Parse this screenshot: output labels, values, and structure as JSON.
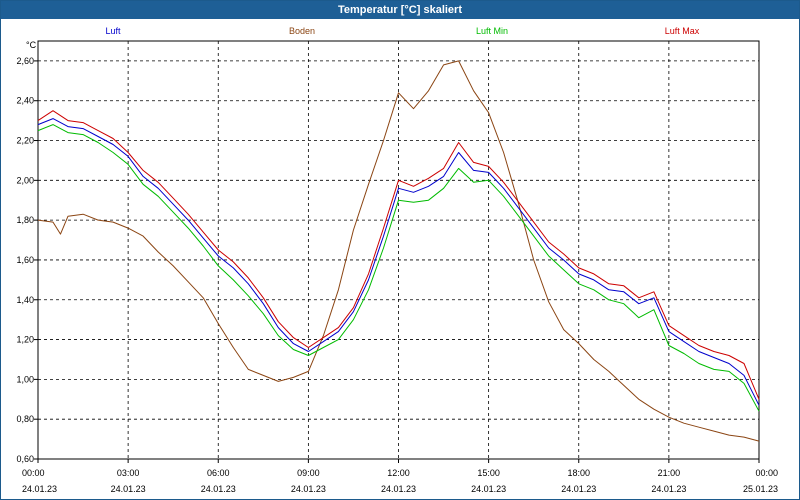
{
  "window": {
    "title": "Temperatur [°C] skaliert"
  },
  "chart_data": {
    "type": "line",
    "title": "Temperatur [°C] skaliert",
    "ylabel": "°C",
    "xlabel": "",
    "ylim": [
      0.6,
      2.7
    ],
    "xlim": [
      0,
      24
    ],
    "grid": true,
    "legend_position": "top",
    "yticks": [
      "2,60",
      "2,40",
      "2,20",
      "2,00",
      "1,80",
      "1,60",
      "1,40",
      "1,20",
      "1,00",
      "0,80",
      "0,60"
    ],
    "xticks": [
      {
        "time": "00:00",
        "date": "24.01.23"
      },
      {
        "time": "03:00",
        "date": "24.01.23"
      },
      {
        "time": "06:00",
        "date": "24.01.23"
      },
      {
        "time": "09:00",
        "date": "24.01.23"
      },
      {
        "time": "12:00",
        "date": "24.01.23"
      },
      {
        "time": "15:00",
        "date": "24.01.23"
      },
      {
        "time": "18:00",
        "date": "24.01.23"
      },
      {
        "time": "21:00",
        "date": "24.01.23"
      },
      {
        "time": "00:00",
        "date": "25.01.23"
      }
    ],
    "series": [
      {
        "name": "Luft",
        "color": "#0000cc",
        "points": [
          [
            0,
            2.28
          ],
          [
            0.5,
            2.31
          ],
          [
            1,
            2.27
          ],
          [
            1.5,
            2.26
          ],
          [
            2,
            2.22
          ],
          [
            2.5,
            2.18
          ],
          [
            3,
            2.12
          ],
          [
            3.5,
            2.02
          ],
          [
            4,
            1.96
          ],
          [
            4.5,
            1.88
          ],
          [
            5,
            1.8
          ],
          [
            5.5,
            1.71
          ],
          [
            6,
            1.62
          ],
          [
            6.5,
            1.56
          ],
          [
            7,
            1.48
          ],
          [
            7.5,
            1.38
          ],
          [
            8,
            1.26
          ],
          [
            8.5,
            1.18
          ],
          [
            9,
            1.14
          ],
          [
            9.5,
            1.19
          ],
          [
            10,
            1.24
          ],
          [
            10.5,
            1.34
          ],
          [
            11,
            1.5
          ],
          [
            11.5,
            1.72
          ],
          [
            12,
            1.96
          ],
          [
            12.5,
            1.94
          ],
          [
            13,
            1.97
          ],
          [
            13.5,
            2.02
          ],
          [
            14,
            2.14
          ],
          [
            14.5,
            2.05
          ],
          [
            15,
            2.04
          ],
          [
            15.5,
            1.96
          ],
          [
            16,
            1.86
          ],
          [
            16.5,
            1.76
          ],
          [
            17,
            1.66
          ],
          [
            17.5,
            1.6
          ],
          [
            18,
            1.53
          ],
          [
            18.5,
            1.5
          ],
          [
            19,
            1.45
          ],
          [
            19.5,
            1.44
          ],
          [
            20,
            1.38
          ],
          [
            20.5,
            1.41
          ],
          [
            21,
            1.24
          ],
          [
            21.5,
            1.19
          ],
          [
            22,
            1.14
          ],
          [
            22.5,
            1.11
          ],
          [
            23,
            1.08
          ],
          [
            23.5,
            1.02
          ],
          [
            24,
            0.87
          ]
        ]
      },
      {
        "name": "Boden",
        "color": "#8b4513",
        "points": [
          [
            0,
            1.8
          ],
          [
            0.5,
            1.79
          ],
          [
            0.75,
            1.73
          ],
          [
            1,
            1.82
          ],
          [
            1.5,
            1.83
          ],
          [
            2,
            1.8
          ],
          [
            2.5,
            1.79
          ],
          [
            3,
            1.76
          ],
          [
            3.5,
            1.72
          ],
          [
            4,
            1.64
          ],
          [
            4.5,
            1.57
          ],
          [
            5,
            1.49
          ],
          [
            5.5,
            1.41
          ],
          [
            6,
            1.28
          ],
          [
            6.5,
            1.16
          ],
          [
            7,
            1.05
          ],
          [
            7.5,
            1.02
          ],
          [
            8,
            0.99
          ],
          [
            8.5,
            1.01
          ],
          [
            9,
            1.04
          ],
          [
            9.5,
            1.22
          ],
          [
            10,
            1.45
          ],
          [
            10.5,
            1.75
          ],
          [
            11,
            1.98
          ],
          [
            11.5,
            2.2
          ],
          [
            12,
            2.44
          ],
          [
            12.5,
            2.36
          ],
          [
            13,
            2.45
          ],
          [
            13.5,
            2.58
          ],
          [
            14,
            2.6
          ],
          [
            14.5,
            2.45
          ],
          [
            15,
            2.34
          ],
          [
            15.5,
            2.14
          ],
          [
            16,
            1.88
          ],
          [
            16.5,
            1.6
          ],
          [
            17,
            1.39
          ],
          [
            17.5,
            1.25
          ],
          [
            18,
            1.18
          ],
          [
            18.5,
            1.1
          ],
          [
            19,
            1.04
          ],
          [
            19.5,
            0.97
          ],
          [
            20,
            0.9
          ],
          [
            20.5,
            0.85
          ],
          [
            21,
            0.81
          ],
          [
            21.5,
            0.78
          ],
          [
            22,
            0.76
          ],
          [
            22.5,
            0.74
          ],
          [
            23,
            0.72
          ],
          [
            23.5,
            0.71
          ],
          [
            24,
            0.69
          ]
        ]
      },
      {
        "name": "Luft Min",
        "color": "#00bb00",
        "points": [
          [
            0,
            2.25
          ],
          [
            0.5,
            2.28
          ],
          [
            1,
            2.24
          ],
          [
            1.5,
            2.23
          ],
          [
            2,
            2.19
          ],
          [
            2.5,
            2.14
          ],
          [
            3,
            2.08
          ],
          [
            3.5,
            1.98
          ],
          [
            4,
            1.92
          ],
          [
            4.5,
            1.84
          ],
          [
            5,
            1.76
          ],
          [
            5.5,
            1.67
          ],
          [
            6,
            1.57
          ],
          [
            6.5,
            1.5
          ],
          [
            7,
            1.42
          ],
          [
            7.5,
            1.33
          ],
          [
            8,
            1.22
          ],
          [
            8.5,
            1.15
          ],
          [
            9,
            1.12
          ],
          [
            9.5,
            1.16
          ],
          [
            10,
            1.2
          ],
          [
            10.5,
            1.3
          ],
          [
            11,
            1.45
          ],
          [
            11.5,
            1.66
          ],
          [
            12,
            1.9
          ],
          [
            12.5,
            1.89
          ],
          [
            13,
            1.9
          ],
          [
            13.5,
            1.96
          ],
          [
            14,
            2.06
          ],
          [
            14.5,
            1.99
          ],
          [
            15,
            2.0
          ],
          [
            15.5,
            1.92
          ],
          [
            16,
            1.82
          ],
          [
            16.5,
            1.72
          ],
          [
            17,
            1.62
          ],
          [
            17.5,
            1.55
          ],
          [
            18,
            1.48
          ],
          [
            18.5,
            1.45
          ],
          [
            19,
            1.4
          ],
          [
            19.5,
            1.38
          ],
          [
            20,
            1.31
          ],
          [
            20.5,
            1.35
          ],
          [
            21,
            1.17
          ],
          [
            21.5,
            1.13
          ],
          [
            22,
            1.08
          ],
          [
            22.5,
            1.05
          ],
          [
            23,
            1.04
          ],
          [
            23.5,
            0.98
          ],
          [
            24,
            0.84
          ]
        ]
      },
      {
        "name": "Luft Max",
        "color": "#cc0000",
        "points": [
          [
            0,
            2.3
          ],
          [
            0.5,
            2.35
          ],
          [
            1,
            2.3
          ],
          [
            1.5,
            2.29
          ],
          [
            2,
            2.25
          ],
          [
            2.5,
            2.21
          ],
          [
            3,
            2.14
          ],
          [
            3.5,
            2.05
          ],
          [
            4,
            1.99
          ],
          [
            4.5,
            1.91
          ],
          [
            5,
            1.83
          ],
          [
            5.5,
            1.74
          ],
          [
            6,
            1.65
          ],
          [
            6.5,
            1.59
          ],
          [
            7,
            1.51
          ],
          [
            7.5,
            1.41
          ],
          [
            8,
            1.29
          ],
          [
            8.5,
            1.21
          ],
          [
            9,
            1.16
          ],
          [
            9.5,
            1.21
          ],
          [
            10,
            1.26
          ],
          [
            10.5,
            1.36
          ],
          [
            11,
            1.53
          ],
          [
            11.5,
            1.76
          ],
          [
            12,
            2.0
          ],
          [
            12.5,
            1.97
          ],
          [
            13,
            2.01
          ],
          [
            13.5,
            2.06
          ],
          [
            14,
            2.19
          ],
          [
            14.5,
            2.09
          ],
          [
            15,
            2.07
          ],
          [
            15.5,
            1.99
          ],
          [
            16,
            1.89
          ],
          [
            16.5,
            1.79
          ],
          [
            17,
            1.69
          ],
          [
            17.5,
            1.63
          ],
          [
            18,
            1.56
          ],
          [
            18.5,
            1.53
          ],
          [
            19,
            1.48
          ],
          [
            19.5,
            1.47
          ],
          [
            20,
            1.41
          ],
          [
            20.5,
            1.44
          ],
          [
            21,
            1.27
          ],
          [
            21.5,
            1.22
          ],
          [
            22,
            1.17
          ],
          [
            22.5,
            1.14
          ],
          [
            23,
            1.12
          ],
          [
            23.5,
            1.08
          ],
          [
            24,
            0.9
          ]
        ]
      }
    ]
  }
}
